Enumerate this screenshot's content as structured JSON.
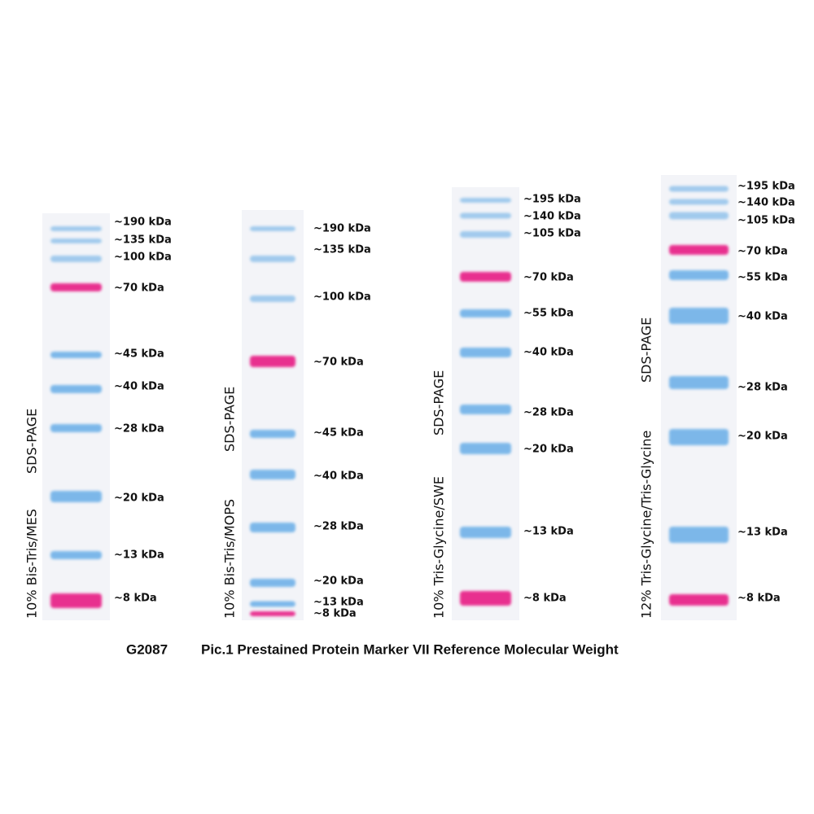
{
  "gels": [
    {
      "gel_type": "10% Bis-Tris/MES",
      "method": "SDS-PAGE",
      "band_labels": [
        "~190 kDa",
        "~135 kDa",
        "~100 kDa",
        "~70 kDa",
        "~45 kDa",
        "~40 kDa",
        "~28 kDa",
        "~20 kDa",
        "~13 kDa",
        "~8 kDa"
      ]
    },
    {
      "gel_type": "10% Bis-Tris/MOPS",
      "method": "SDS-PAGE",
      "band_labels": [
        "~190 kDa",
        "~135 kDa",
        "~100 kDa",
        "~70 kDa",
        "~45 kDa",
        "~40 kDa",
        "~28 kDa",
        "~20 kDa",
        "~13 kDa",
        "~8 kDa"
      ]
    },
    {
      "gel_type": "10% Tris-Glycine/SWE",
      "method": "SDS-PAGE",
      "band_labels": [
        "~195 kDa",
        "~140 kDa",
        "~105 kDa",
        "~70 kDa",
        "~55 kDa",
        "~40 kDa",
        "~28 kDa",
        "~20 kDa",
        "~13 kDa",
        "~8 kDa"
      ]
    },
    {
      "gel_type": "12% Tris-Glycine/Tris-Glycine",
      "method": "SDS-PAGE",
      "band_labels": [
        "~195 kDa",
        "~140 kDa",
        "~105 kDa",
        "~70 kDa",
        "~55 kDa",
        "~40 kDa",
        "~28 kDa",
        "~20 kDa",
        "~13 kDa",
        "~8 kDa"
      ]
    }
  ],
  "caption": {
    "code": "G2087",
    "text": "Pic.1 Prestained Protein Marker VII Reference Molecular Weight"
  }
}
